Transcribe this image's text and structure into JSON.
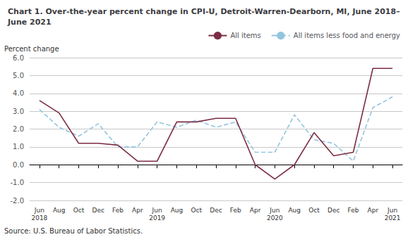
{
  "chart_data": {
    "type": "line",
    "title": "Chart 1. Over-the-year percent change in CPI-U, Detroit-Warren-Dearborn, MI, June 2018–\nJune 2021",
    "ylabel": "Percent change",
    "source": "Source: U.S. Bureau of Labor Statistics.",
    "categories": [
      "Jun\n2018",
      "Aug",
      "Oct",
      "Dec",
      "Feb",
      "Apr",
      "Jun\n2019",
      "Aug",
      "Oct",
      "Dec",
      "Feb",
      "Apr",
      "Jun\n2020",
      "Aug",
      "Oct",
      "Dec",
      "Feb",
      "Apr",
      "Jun\n2021"
    ],
    "series": [
      {
        "name": "All items",
        "color": "#7B2D43",
        "line_style": "solid",
        "values": [
          3.6,
          2.9,
          1.2,
          1.2,
          1.1,
          0.2,
          0.2,
          2.4,
          2.4,
          2.6,
          2.6,
          0.0,
          -0.8,
          0.0,
          1.8,
          0.5,
          0.7,
          5.4,
          5.4
        ]
      },
      {
        "name": "All items less food and energy",
        "color": "#92C5DE",
        "line_style": "dashed",
        "values": [
          3.1,
          2.1,
          1.6,
          2.3,
          1.0,
          1.0,
          2.4,
          2.1,
          2.5,
          2.1,
          2.4,
          0.7,
          0.7,
          2.8,
          1.4,
          1.2,
          0.2,
          3.2,
          3.8
        ]
      }
    ],
    "ylim": [
      -2.0,
      6.0
    ],
    "yticks": [
      {
        "value": -2,
        "label": "-2.0"
      },
      {
        "value": -1,
        "label": "-1.0"
      },
      {
        "value": 0,
        "label": "0.0"
      },
      {
        "value": 1,
        "label": "1.0"
      },
      {
        "value": 2,
        "label": "2.0"
      },
      {
        "value": 3,
        "label": "3.0"
      },
      {
        "value": 4,
        "label": "4.0"
      },
      {
        "value": 5,
        "label": "5.0"
      },
      {
        "value": 6,
        "label": "6.0"
      }
    ],
    "grid": true,
    "legend": "upper right"
  }
}
